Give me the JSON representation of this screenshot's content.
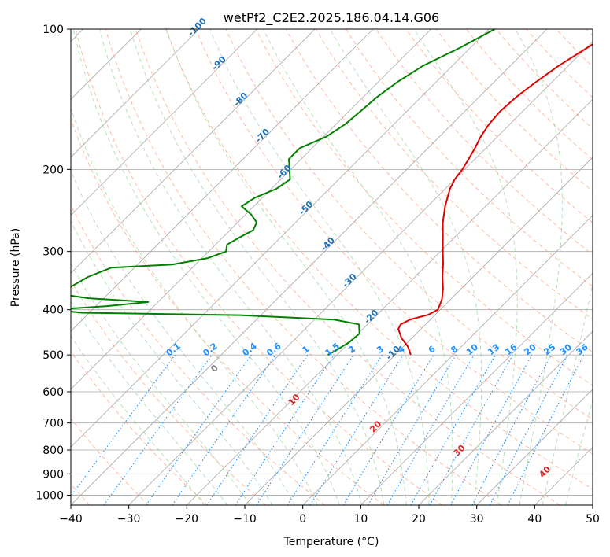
{
  "chart_data": {
    "type": "line",
    "title": "wetPf2_C2E2.2025.186.04.14.G06",
    "xlabel": "Temperature (°C)",
    "ylabel": "Pressure (hPa)",
    "xlim": [
      -40,
      50
    ],
    "ylim": [
      1050,
      100
    ],
    "y_scale": "log",
    "skew": "skew-T",
    "x_ticks": [
      -40,
      -30,
      -20,
      -10,
      0,
      10,
      20,
      30,
      40,
      50
    ],
    "y_ticks": [
      100,
      200,
      300,
      400,
      500,
      600,
      700,
      800,
      900,
      1000
    ],
    "grid": true,
    "colors": {
      "temperature": "#e00000",
      "dewpoint": "#008000",
      "isotherm": "#a8a8a8",
      "dry_adiabat": "#ff9a7a",
      "moist_adiabat": "#8fd08f",
      "mixing_ratio": "#1e90ff",
      "isotherm_label": "#1f6fb4",
      "dry_label": "#d62728",
      "zero_label": "#808080"
    },
    "series": [
      {
        "role": "temperature",
        "points": [
          {
            "p": 100,
            "t": -28.0
          },
          {
            "p": 110,
            "t": -29.9
          },
          {
            "p": 120,
            "t": -31.7
          },
          {
            "p": 130,
            "t": -32.8
          },
          {
            "p": 140,
            "t": -33.6
          },
          {
            "p": 150,
            "t": -33.9
          },
          {
            "p": 160,
            "t": -33.6
          },
          {
            "p": 170,
            "t": -32.9
          },
          {
            "p": 180,
            "t": -31.9
          },
          {
            "p": 190,
            "t": -31.1
          },
          {
            "p": 200,
            "t": -30.4
          },
          {
            "p": 210,
            "t": -30.0
          },
          {
            "p": 220,
            "t": -29.2
          },
          {
            "p": 240,
            "t": -27.0
          },
          {
            "p": 260,
            "t": -24.6
          },
          {
            "p": 280,
            "t": -22.0
          },
          {
            "p": 300,
            "t": -19.6
          },
          {
            "p": 320,
            "t": -17.3
          },
          {
            "p": 340,
            "t": -15.3
          },
          {
            "p": 360,
            "t": -13.2
          },
          {
            "p": 380,
            "t": -11.5
          },
          {
            "p": 400,
            "t": -10.4
          },
          {
            "p": 410,
            "t": -11.2
          },
          {
            "p": 420,
            "t": -13.5
          },
          {
            "p": 430,
            "t": -14.3
          },
          {
            "p": 440,
            "t": -13.9
          },
          {
            "p": 460,
            "t": -11.8
          },
          {
            "p": 480,
            "t": -9.2
          },
          {
            "p": 500,
            "t": -7.3
          }
        ]
      },
      {
        "role": "dewpoint",
        "points": [
          {
            "p": 100,
            "t": -49.0
          },
          {
            "p": 110,
            "t": -51.9
          },
          {
            "p": 120,
            "t": -55.1
          },
          {
            "p": 130,
            "t": -56.7
          },
          {
            "p": 140,
            "t": -57.6
          },
          {
            "p": 150,
            "t": -58.0
          },
          {
            "p": 160,
            "t": -58.4
          },
          {
            "p": 170,
            "t": -59.5
          },
          {
            "p": 180,
            "t": -62.1
          },
          {
            "p": 190,
            "t": -62.1
          },
          {
            "p": 200,
            "t": -60.2
          },
          {
            "p": 210,
            "t": -58.4
          },
          {
            "p": 220,
            "t": -59.1
          },
          {
            "p": 230,
            "t": -61.3
          },
          {
            "p": 240,
            "t": -62.1
          },
          {
            "p": 250,
            "t": -59.0
          },
          {
            "p": 260,
            "t": -56.7
          },
          {
            "p": 270,
            "t": -56.0
          },
          {
            "p": 280,
            "t": -57.1
          },
          {
            "p": 290,
            "t": -58.0
          },
          {
            "p": 300,
            "t": -57.0
          },
          {
            "p": 310,
            "t": -59.0
          },
          {
            "p": 320,
            "t": -64.0
          },
          {
            "p": 325,
            "t": -74.0
          },
          {
            "p": 340,
            "t": -76.4
          },
          {
            "p": 370,
            "t": -78.6
          },
          {
            "p": 378,
            "t": -72.6
          },
          {
            "p": 385,
            "t": -61.7
          },
          {
            "p": 393,
            "t": -68.1
          },
          {
            "p": 400,
            "t": -76.8
          },
          {
            "p": 406,
            "t": -71.3
          },
          {
            "p": 411,
            "t": -43.6
          },
          {
            "p": 420,
            "t": -26.6
          },
          {
            "p": 430,
            "t": -21.5
          },
          {
            "p": 450,
            "t": -19.8
          },
          {
            "p": 470,
            "t": -20.1
          },
          {
            "p": 490,
            "t": -21.0
          },
          {
            "p": 500,
            "t": -21.6
          }
        ]
      }
    ],
    "isotherm_labels": [
      -100,
      -90,
      -80,
      -70,
      -60,
      -50,
      -40,
      -30,
      -20,
      -10
    ],
    "dry_adiabat_labels": [
      0,
      10,
      20,
      30,
      40
    ],
    "mixing_ratio_labels": [
      "0.1",
      "0.2",
      "0.4",
      "0.6",
      "1",
      "1.5",
      "2",
      "3",
      "4",
      "6",
      "8",
      "10",
      "13",
      "16",
      "20",
      "25",
      "30",
      "36"
    ],
    "mixing_ratio_values": [
      0.1,
      0.2,
      0.4,
      0.6,
      1,
      1.5,
      2,
      3,
      4,
      6,
      8,
      10,
      13,
      16,
      20,
      25,
      30,
      36
    ]
  }
}
